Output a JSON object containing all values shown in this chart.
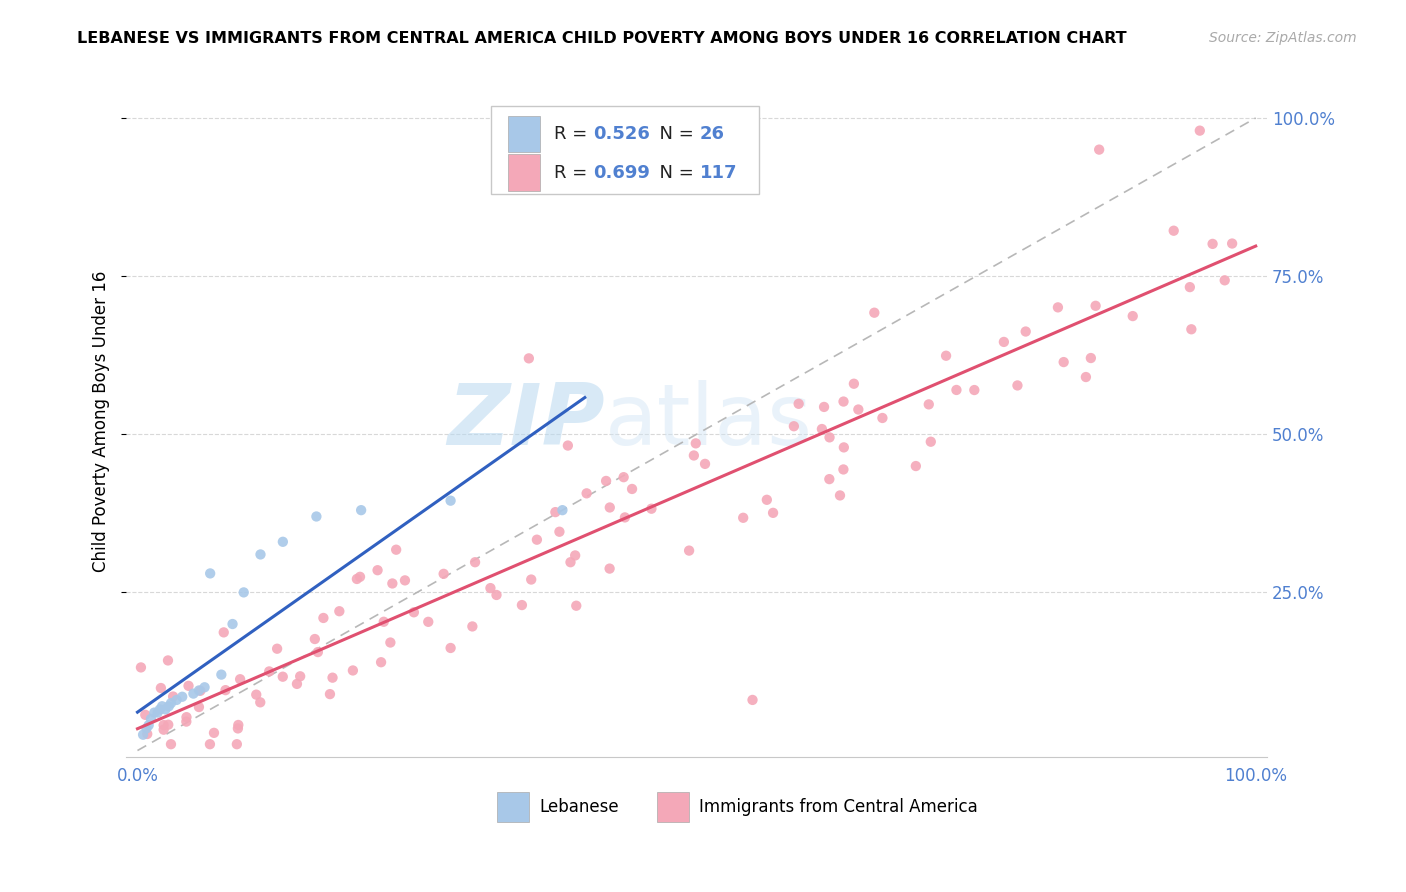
{
  "title": "LEBANESE VS IMMIGRANTS FROM CENTRAL AMERICA CHILD POVERTY AMONG BOYS UNDER 16 CORRELATION CHART",
  "source": "Source: ZipAtlas.com",
  "ylabel": "Child Poverty Among Boys Under 16",
  "watermark_zip": "ZIP",
  "watermark_atlas": "atlas",
  "legend_r1": "0.526",
  "legend_n1": "26",
  "legend_r2": "0.699",
  "legend_n2": "117",
  "color_lebanese": "#a8c8e8",
  "color_central_america": "#f4a8b8",
  "color_lebanese_line": "#3060c0",
  "color_central_america_line": "#e05070",
  "color_diagonal": "#b0b0b0",
  "tick_color": "#5080d0",
  "title_fontsize": 11.5,
  "axis_fontsize": 12
}
